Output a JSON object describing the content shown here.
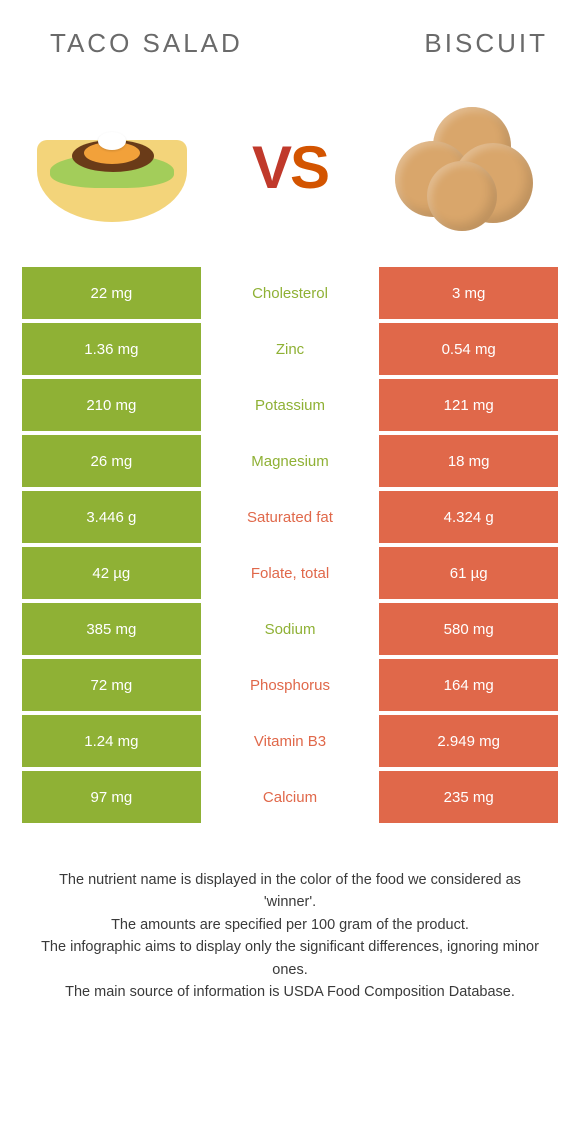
{
  "header": {
    "left_title": "TACO SALAD",
    "right_title": "BISCUIT"
  },
  "vs": {
    "v": "V",
    "s": "S"
  },
  "colors": {
    "left": "#8fb135",
    "right": "#e0684a",
    "left_text": "#8fb135",
    "right_text": "#e0684a",
    "title_text": "#6a6a6a",
    "footer_text": "#3a3a3a",
    "background": "#ffffff"
  },
  "rows": [
    {
      "left": "22 mg",
      "name": "Cholesterol",
      "right": "3 mg",
      "winner": "left"
    },
    {
      "left": "1.36 mg",
      "name": "Zinc",
      "right": "0.54 mg",
      "winner": "left"
    },
    {
      "left": "210 mg",
      "name": "Potassium",
      "right": "121 mg",
      "winner": "left"
    },
    {
      "left": "26 mg",
      "name": "Magnesium",
      "right": "18 mg",
      "winner": "left"
    },
    {
      "left": "3.446 g",
      "name": "Saturated fat",
      "right": "4.324 g",
      "winner": "right"
    },
    {
      "left": "42 µg",
      "name": "Folate, total",
      "right": "61 µg",
      "winner": "right"
    },
    {
      "left": "385 mg",
      "name": "Sodium",
      "right": "580 mg",
      "winner": "left"
    },
    {
      "left": "72 mg",
      "name": "Phosphorus",
      "right": "164 mg",
      "winner": "right"
    },
    {
      "left": "1.24 mg",
      "name": "Vitamin B3",
      "right": "2.949 mg",
      "winner": "right"
    },
    {
      "left": "97 mg",
      "name": "Calcium",
      "right": "235 mg",
      "winner": "right"
    }
  ],
  "footer": {
    "line1": "The nutrient name is displayed in the color of the food we considered as 'winner'.",
    "line2": "The amounts are specified per 100 gram of the product.",
    "line3": "The infographic aims to display only the significant differences, ignoring minor ones.",
    "line4": "The main source of information is USDA Food Composition Database."
  }
}
